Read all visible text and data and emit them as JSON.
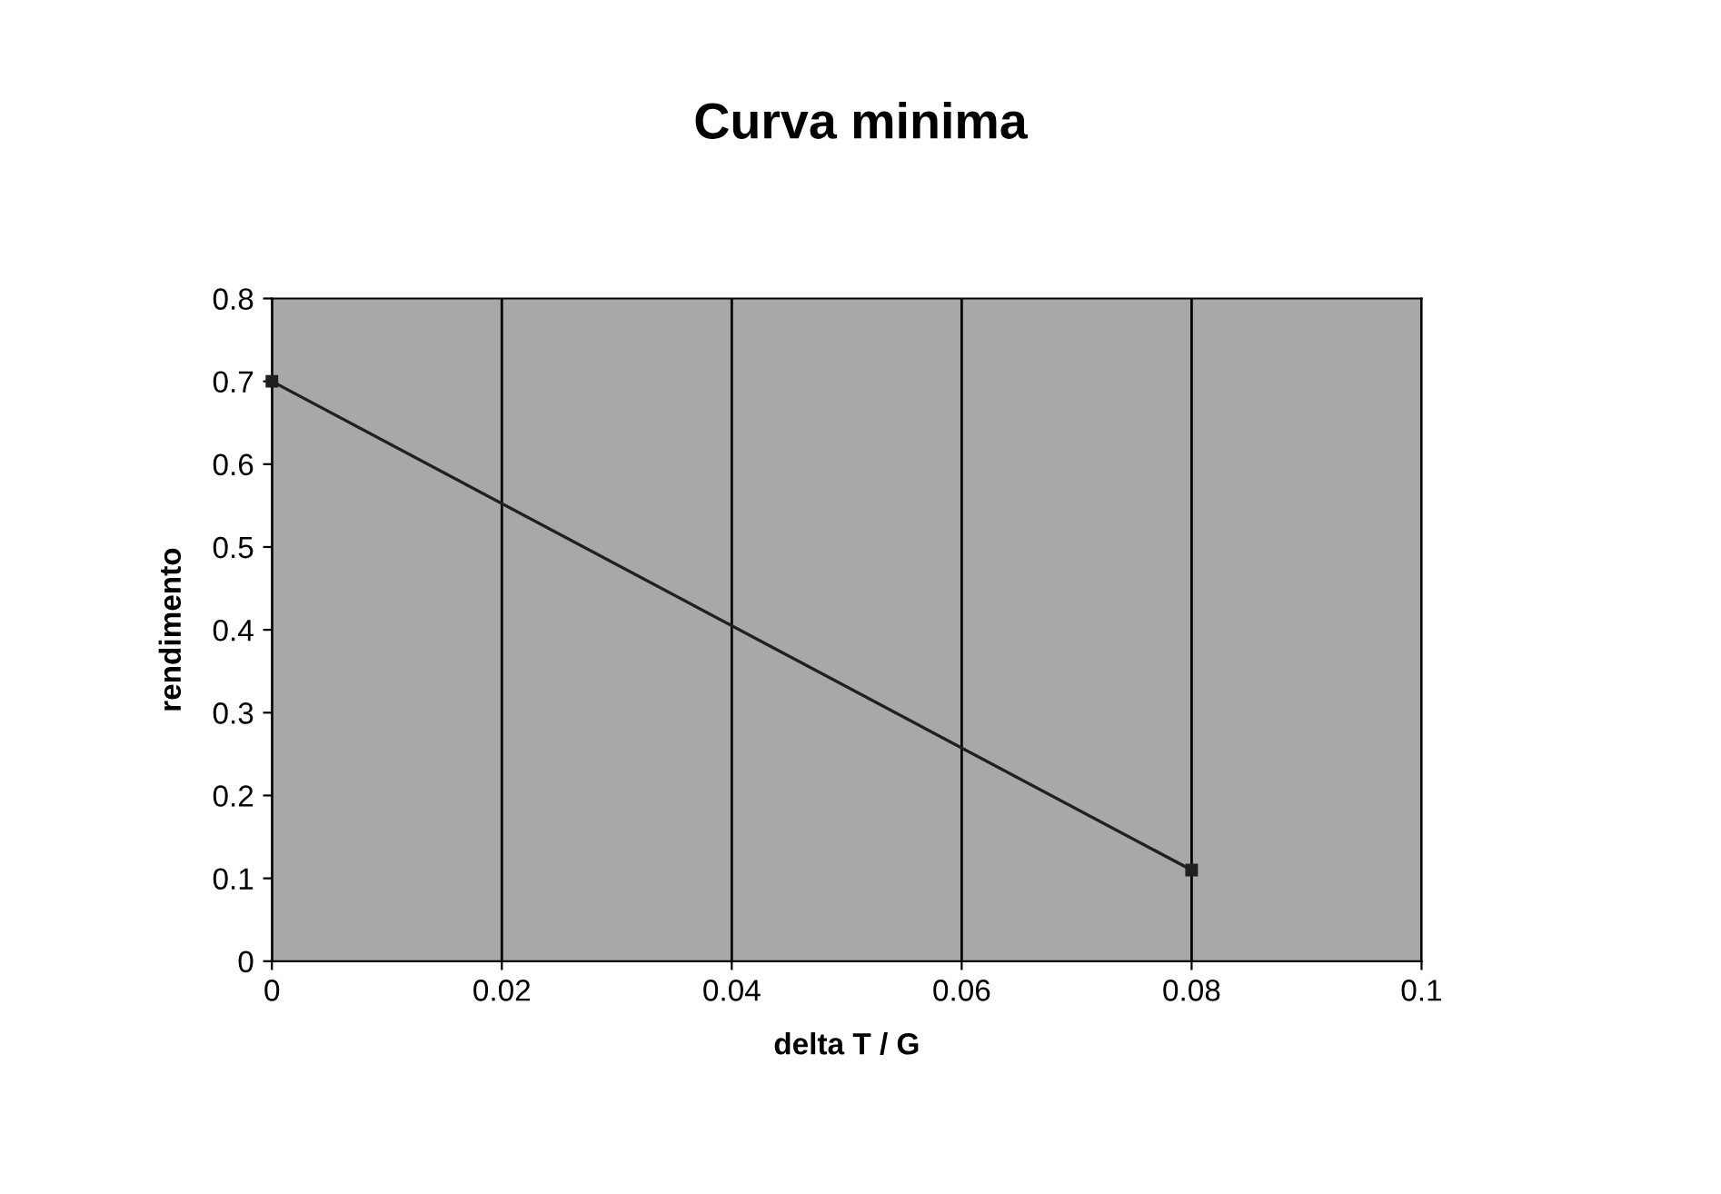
{
  "chart_data": {
    "type": "line",
    "title": "Curva minima",
    "xlabel": "delta T / G",
    "ylabel": "rendimento",
    "x": [
      0,
      0.08
    ],
    "series": [
      {
        "color": "#202020",
        "values": [
          0.7,
          0.11
        ]
      }
    ],
    "xlim": [
      0,
      0.1
    ],
    "xticks": [
      0,
      0.02,
      0.04,
      0.06,
      0.08,
      0.1
    ],
    "ylim": [
      0,
      0.8
    ],
    "yticks": [
      0,
      0.1,
      0.2,
      0.3,
      0.4,
      0.5,
      0.6,
      0.7,
      0.8
    ],
    "grid": "x",
    "marker": "square",
    "line_style": "solid"
  }
}
